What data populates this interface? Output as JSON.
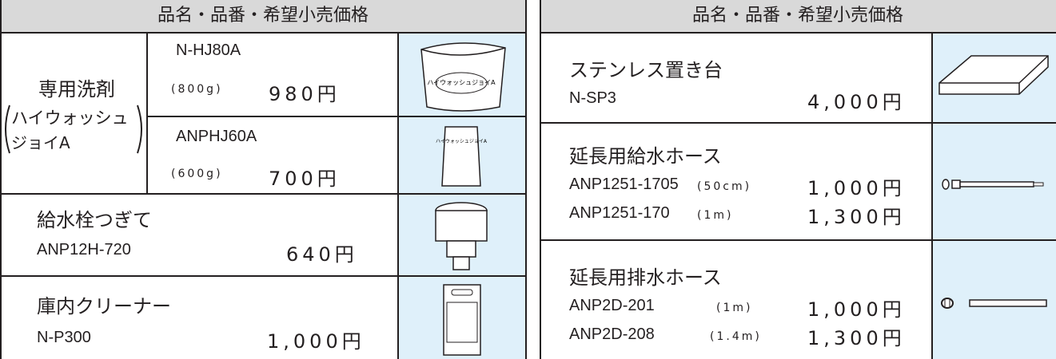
{
  "left": {
    "header": "品名・品番・希望小売価格",
    "detergent": {
      "name": "専用洗剤",
      "brand": [
        "ハイウォッシュ",
        "ジョイA"
      ],
      "items": [
        {
          "code": "N-HJ80A",
          "spec": "(800g)",
          "price": "980円",
          "image_text": "ハイウォッシュジョイA"
        },
        {
          "code": "ANPHJ60A",
          "spec": "(600g)",
          "price": "700円",
          "image_text": "ハイウォッシュジョイA"
        }
      ]
    },
    "rows": [
      {
        "name": "給水栓つぎて",
        "code": "ANP12H-720",
        "price": "640円"
      },
      {
        "name": "庫内クリーナー",
        "code": "N-P300",
        "price": "1,000円"
      }
    ]
  },
  "right": {
    "header": "品名・品番・希望小売価格",
    "rows": [
      {
        "name": "ステンレス置き台",
        "lines": [
          {
            "code": "N-SP3",
            "price": "4,000円"
          }
        ]
      },
      {
        "name": "延長用給水ホース",
        "lines": [
          {
            "code": "ANP1251-1705",
            "spec": "(50cm)",
            "price": "1,000円"
          },
          {
            "code": "ANP1251-170",
            "spec": "(1m)",
            "price": "1,300円"
          }
        ]
      },
      {
        "name": "延長用排水ホース",
        "lines": [
          {
            "code": "ANP2D-201",
            "spec": "(1m)",
            "price": "1,000円"
          },
          {
            "code": "ANP2D-208",
            "spec": "(1.4m)",
            "price": "1,300円"
          }
        ]
      }
    ]
  }
}
